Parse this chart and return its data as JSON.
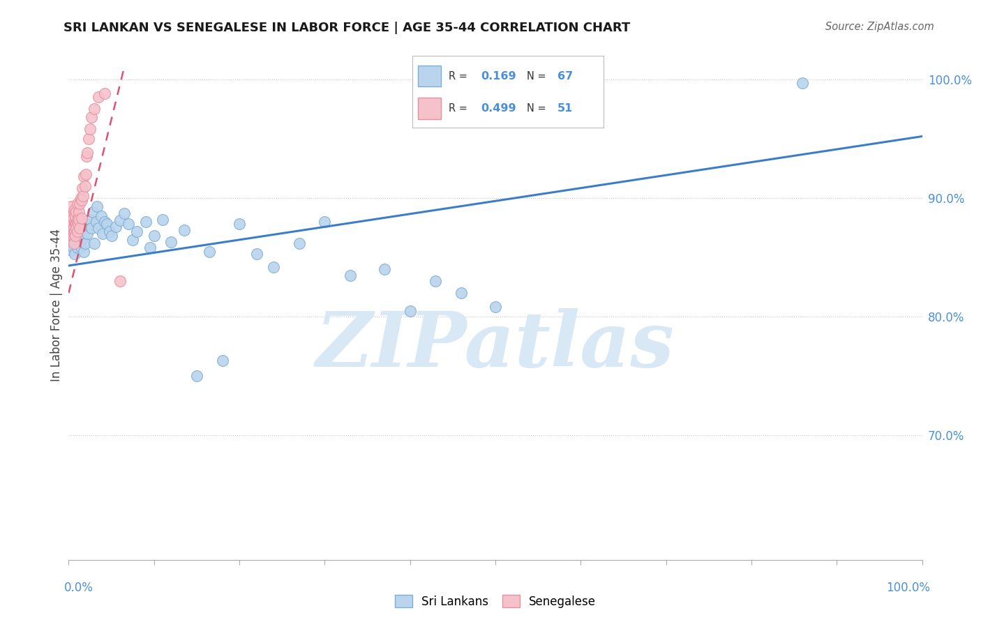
{
  "title": "SRI LANKAN VS SENEGALESE IN LABOR FORCE | AGE 35-44 CORRELATION CHART",
  "source": "Source: ZipAtlas.com",
  "ylabel": "In Labor Force | Age 35-44",
  "ylabel_tick_vals": [
    1.0,
    0.9,
    0.8,
    0.7
  ],
  "xlim": [
    0.0,
    1.0
  ],
  "ylim": [
    0.595,
    1.025
  ],
  "sri_lankan_color": "#bad4ed",
  "senegalese_color": "#f5c2cc",
  "sri_lankan_edge": "#7bafd4",
  "senegalese_edge": "#e8909e",
  "trend_blue": "#3a7ec8",
  "trend_pink": "#e05070",
  "R_blue": 0.169,
  "N_blue": 67,
  "R_pink": 0.499,
  "N_pink": 51,
  "legend_label_blue": "Sri Lankans",
  "legend_label_pink": "Senegalese",
  "blue_trend_x": [
    0.0,
    1.0
  ],
  "blue_trend_y": [
    0.843,
    0.952
  ],
  "pink_trend_x": [
    0.0,
    0.065
  ],
  "pink_trend_y": [
    0.82,
    1.01
  ],
  "watermark": "ZIPatlas",
  "watermark_color": "#d8e8f5",
  "background_color": "#ffffff",
  "grid_color": "#c8c8c8",
  "dot_size": 130
}
